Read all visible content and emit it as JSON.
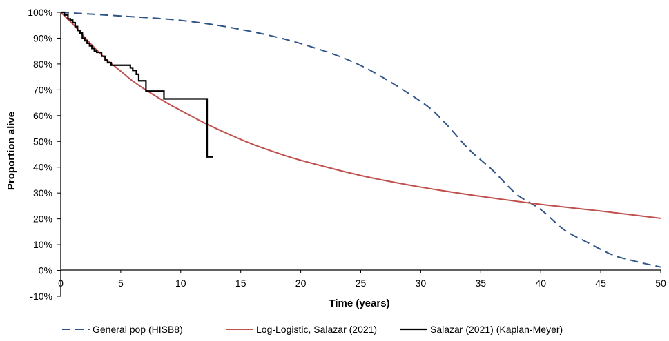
{
  "chart_data": {
    "type": "line",
    "title": "",
    "xlabel": "Time (years)",
    "ylabel": "Proportion alive",
    "xlim": [
      0,
      50
    ],
    "ylim": [
      -10,
      100
    ],
    "x_ticks": [
      0,
      5,
      10,
      15,
      20,
      25,
      30,
      35,
      40,
      45,
      50
    ],
    "x_tick_labels": [
      "0",
      "5",
      "10",
      "15",
      "20",
      "25",
      "30",
      "35",
      "40",
      "45",
      "50"
    ],
    "y_ticks": [
      -10,
      0,
      10,
      20,
      30,
      40,
      50,
      60,
      70,
      80,
      90,
      100
    ],
    "y_tick_labels": [
      "-10%",
      "0%",
      "10%",
      "20%",
      "30%",
      "40%",
      "50%",
      "60%",
      "70%",
      "80%",
      "90%",
      "100%"
    ],
    "grid": false,
    "legend_position": "bottom",
    "series": [
      {
        "name": "General pop (HISB8)",
        "color": "#2e5487",
        "style": "dashed",
        "x": [
          0,
          5,
          10,
          15,
          20,
          25,
          30,
          32,
          34,
          36,
          38,
          40,
          42,
          44,
          46,
          48,
          50
        ],
        "y": [
          100,
          98.6,
          96.9,
          93.4,
          87.9,
          79.4,
          65.5,
          57.3,
          47.0,
          38.8,
          29.5,
          23.6,
          15.6,
          10.6,
          6.0,
          3.4,
          1.3
        ]
      },
      {
        "name": "Log-Logistic, Salazar (2021)",
        "color": "#c0504d",
        "style": "solid",
        "x": [
          0,
          1,
          2,
          3,
          4,
          5,
          6,
          7,
          8,
          9,
          10,
          12,
          14,
          16,
          18,
          20,
          25,
          30,
          35,
          40,
          45,
          50
        ],
        "y": [
          100,
          95.5,
          90.3,
          85.4,
          81.0,
          77.2,
          73.4,
          70.2,
          67.3,
          64.5,
          62.0,
          57.1,
          52.8,
          48.9,
          45.6,
          42.7,
          36.8,
          32.3,
          28.7,
          25.6,
          23.0,
          20.2
        ]
      },
      {
        "name": "Salazar (2021) (Kaplan-Meyer)",
        "color": "#000000",
        "style": "step",
        "x": [
          0,
          0.3,
          0.6,
          0.8,
          1.0,
          1.2,
          1.4,
          1.6,
          1.8,
          2.0,
          2.2,
          2.4,
          2.6,
          2.8,
          3.0,
          3.4,
          3.7,
          3.9,
          4.2,
          5.8,
          6.0,
          6.3,
          6.5,
          7.1,
          7.2,
          8.6,
          8.7,
          12.2,
          12.7
        ],
        "y": [
          100,
          99.0,
          97.5,
          97.0,
          96.0,
          94.5,
          93.0,
          92.0,
          90.0,
          89.0,
          88.0,
          87.0,
          86.0,
          85.0,
          84.5,
          83.0,
          81.5,
          80.5,
          79.5,
          78.5,
          77.5,
          76.0,
          73.5,
          69.5,
          69.5,
          66.5,
          66.5,
          44.0,
          44.0
        ]
      }
    ]
  }
}
